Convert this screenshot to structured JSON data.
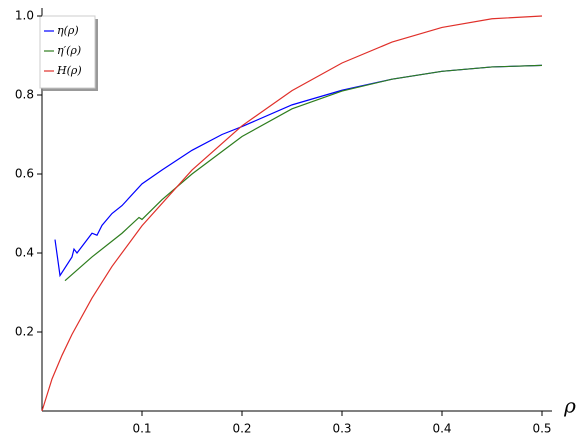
{
  "chart_data": {
    "type": "line",
    "x_label": "ρ",
    "xlim": [
      0,
      0.5
    ],
    "xticks": [
      0.1,
      0.2,
      0.3,
      0.4,
      0.5
    ],
    "ylim": [
      0,
      1.0
    ],
    "yticks": [
      0.2,
      0.4,
      0.6,
      0.8,
      {
        "value": 1.0,
        "label": "1.0"
      }
    ],
    "legend": "upper left",
    "series": [
      {
        "name": "η(ρ)",
        "color": "#0000ff",
        "x": [
          0.013,
          0.018,
          0.03,
          0.032,
          0.035,
          0.05,
          0.055,
          0.06,
          0.07,
          0.08,
          0.1,
          0.12,
          0.15,
          0.18,
          0.2,
          0.25,
          0.3,
          0.35,
          0.4,
          0.45,
          0.5
        ],
        "values": [
          0.434,
          0.343,
          0.39,
          0.41,
          0.4,
          0.45,
          0.445,
          0.47,
          0.5,
          0.52,
          0.575,
          0.61,
          0.66,
          0.7,
          0.72,
          0.775,
          0.812,
          0.84,
          0.86,
          0.871,
          0.875
        ]
      },
      {
        "name": "η′(ρ)",
        "color": "#2e7d1e",
        "x": [
          0.023,
          0.05,
          0.08,
          0.097,
          0.1,
          0.12,
          0.15,
          0.2,
          0.25,
          0.3,
          0.35,
          0.4,
          0.45,
          0.5
        ],
        "values": [
          0.33,
          0.39,
          0.45,
          0.49,
          0.485,
          0.535,
          0.6,
          0.695,
          0.765,
          0.81,
          0.84,
          0.86,
          0.871,
          0.875
        ]
      },
      {
        "name": "H(ρ)",
        "color": "#e0302a",
        "x": [
          0,
          0.01,
          0.02,
          0.03,
          0.05,
          0.07,
          0.1,
          0.15,
          0.2,
          0.25,
          0.3,
          0.35,
          0.4,
          0.45,
          0.5
        ],
        "values": [
          0,
          0.081,
          0.141,
          0.194,
          0.286,
          0.366,
          0.469,
          0.61,
          0.722,
          0.811,
          0.881,
          0.934,
          0.971,
          0.993,
          1.0
        ]
      }
    ]
  }
}
